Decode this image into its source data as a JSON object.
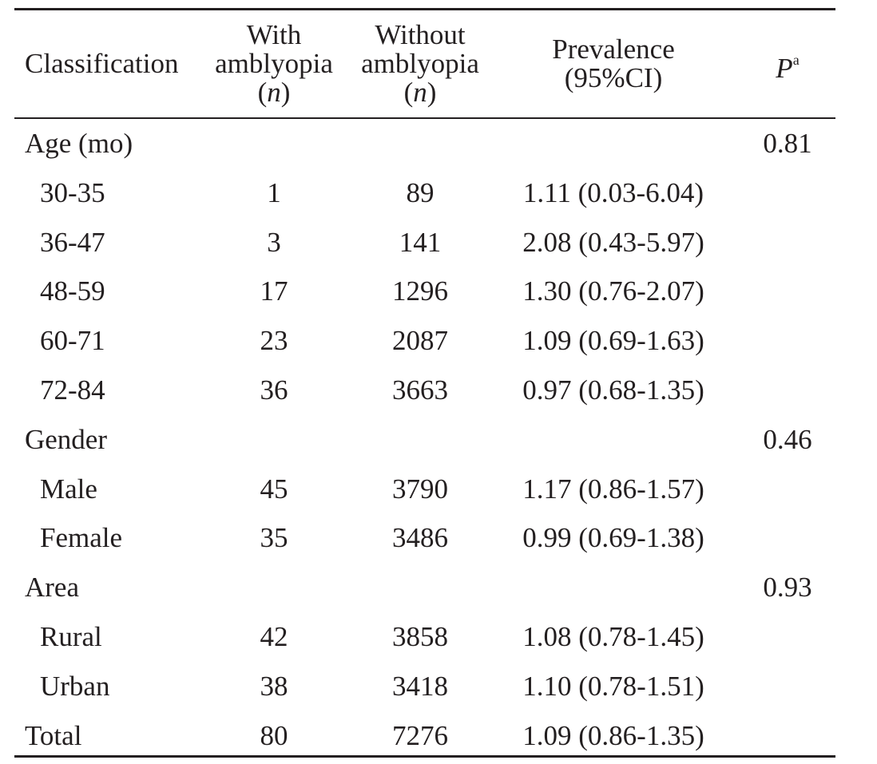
{
  "table": {
    "headers": {
      "classification": "Classification",
      "with_line1": "With",
      "with_line2": "amblyopia",
      "with_line3_open": "(",
      "with_line3_n": "n",
      "with_line3_close": ")",
      "without_line1": "Without",
      "without_line2": "amblyopia",
      "without_line3_open": "(",
      "without_line3_n": "n",
      "without_line3_close": ")",
      "prevalence_line1": "Prevalence",
      "prevalence_line2": "(95%CI)",
      "p_label": "P",
      "p_superscript": "a"
    },
    "rows": [
      {
        "classification": "Age (mo)",
        "with": "",
        "without": "",
        "prevalence": "",
        "p": "0.81"
      },
      {
        "classification": "30-35",
        "with": "1",
        "without": "89",
        "prevalence": "1.11 (0.03-6.04)",
        "p": ""
      },
      {
        "classification": "36-47",
        "with": "3",
        "without": "141",
        "prevalence": "2.08 (0.43-5.97)",
        "p": ""
      },
      {
        "classification": "48-59",
        "with": "17",
        "without": "1296",
        "prevalence": "1.30 (0.76-2.07)",
        "p": ""
      },
      {
        "classification": "60-71",
        "with": "23",
        "without": "2087",
        "prevalence": "1.09 (0.69-1.63)",
        "p": ""
      },
      {
        "classification": "72-84",
        "with": "36",
        "without": "3663",
        "prevalence": "0.97 (0.68-1.35)",
        "p": ""
      },
      {
        "classification": "Gender",
        "with": "",
        "without": "",
        "prevalence": "",
        "p": "0.46"
      },
      {
        "classification": "Male",
        "with": "45",
        "without": "3790",
        "prevalence": "1.17 (0.86-1.57)",
        "p": ""
      },
      {
        "classification": "Female",
        "with": "35",
        "without": "3486",
        "prevalence": "0.99 (0.69-1.38)",
        "p": ""
      },
      {
        "classification": "Area",
        "with": "",
        "without": "",
        "prevalence": "",
        "p": "0.93"
      },
      {
        "classification": "Rural",
        "with": "42",
        "without": "3858",
        "prevalence": "1.08 (0.78-1.45)",
        "p": ""
      },
      {
        "classification": "Urban",
        "with": "38",
        "without": "3418",
        "prevalence": "1.10 (0.78-1.51)",
        "p": ""
      },
      {
        "classification": "Total",
        "with": "80",
        "without": "7276",
        "prevalence": "1.09 (0.86-1.35)",
        "p": ""
      }
    ]
  }
}
